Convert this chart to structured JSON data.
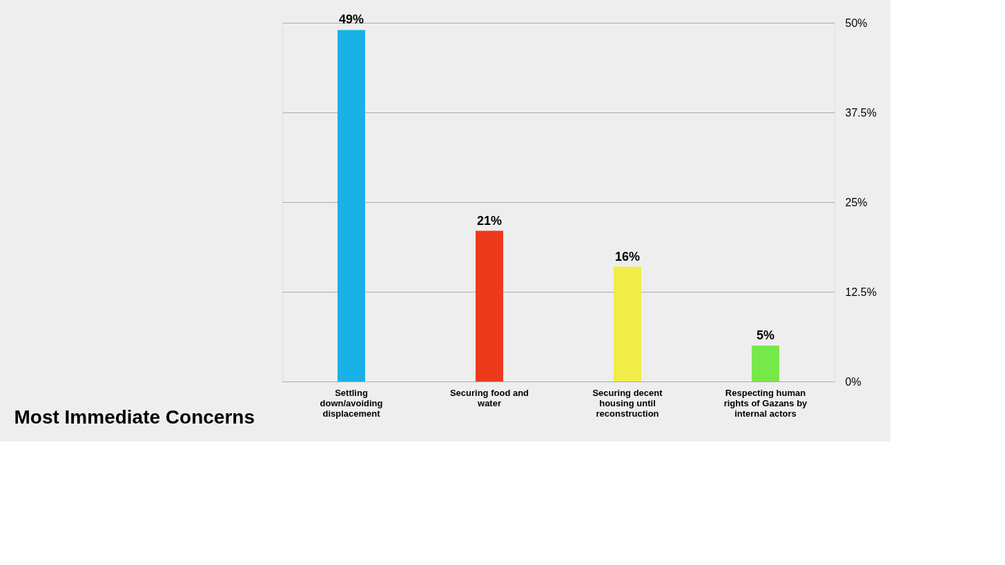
{
  "chart_data": {
    "type": "bar",
    "title": "Most Immediate Concerns",
    "categories": [
      "Settling down/avoiding displacement",
      "Securing food and water",
      "Securing decent housing until reconstruction",
      "Respecting human rights of Gazans by internal actors"
    ],
    "values": [
      49,
      21,
      16,
      5
    ],
    "colors": [
      "#1ab0e8",
      "#ee3a1c",
      "#f0ec48",
      "#77e84a"
    ],
    "value_labels": [
      "49%",
      "21%",
      "16%",
      "5%"
    ],
    "ylim": [
      0,
      50
    ],
    "yticks": [
      {
        "value": 0,
        "label": "0%"
      },
      {
        "value": 12.5,
        "label": "12.5%"
      },
      {
        "value": 25,
        "label": "25%"
      },
      {
        "value": 37.5,
        "label": "37.5%"
      },
      {
        "value": 50,
        "label": "50%"
      }
    ],
    "grid": "y"
  }
}
